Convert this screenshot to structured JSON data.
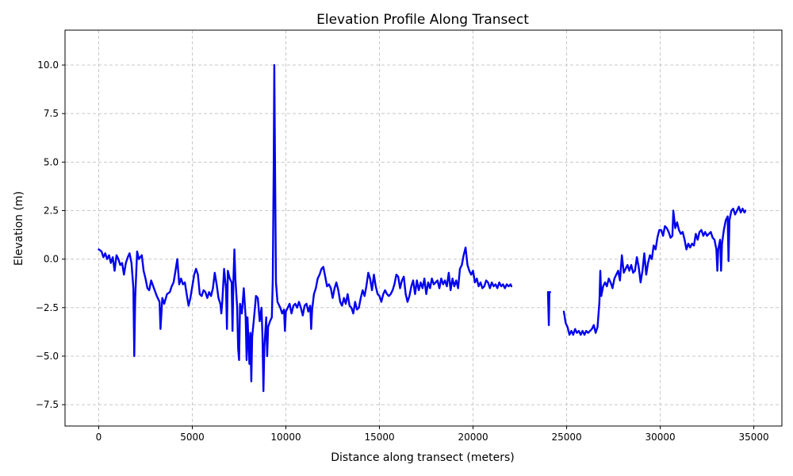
{
  "chart_data": {
    "type": "line",
    "title": "Elevation Profile Along Transect",
    "xlabel": "Distance along transect (meters)",
    "ylabel": "Elevation (m)",
    "xlim": [
      -1800,
      36500
    ],
    "ylim": [
      -8.6,
      11.8
    ],
    "x_ticks": [
      0,
      5000,
      10000,
      15000,
      20000,
      25000,
      30000,
      35000
    ],
    "y_ticks": [
      -7.5,
      -5.0,
      -2.5,
      0.0,
      2.5,
      5.0,
      7.5,
      10.0
    ],
    "grid": true,
    "line_color": "#0000ee",
    "segments": [
      [
        [
          0,
          0.5
        ],
        [
          150,
          0.4
        ],
        [
          250,
          0.1
        ],
        [
          350,
          0.3
        ],
        [
          450,
          0.0
        ],
        [
          550,
          0.2
        ],
        [
          650,
          -0.2
        ],
        [
          750,
          0.1
        ],
        [
          850,
          -0.6
        ],
        [
          950,
          0.2
        ],
        [
          1050,
          0.0
        ],
        [
          1150,
          -0.3
        ],
        [
          1250,
          -0.2
        ],
        [
          1350,
          -0.8
        ],
        [
          1450,
          -0.2
        ],
        [
          1550,
          0.1
        ],
        [
          1650,
          0.3
        ],
        [
          1750,
          -0.2
        ],
        [
          1850,
          -1.5
        ],
        [
          1900,
          -5.0
        ],
        [
          1950,
          -2.0
        ],
        [
          2050,
          0.4
        ],
        [
          2150,
          0.0
        ],
        [
          2300,
          0.2
        ],
        [
          2400,
          -0.6
        ],
        [
          2500,
          -1.0
        ],
        [
          2600,
          -1.5
        ],
        [
          2700,
          -1.6
        ],
        [
          2800,
          -1.1
        ],
        [
          2950,
          -1.5
        ],
        [
          3100,
          -1.9
        ],
        [
          3250,
          -2.2
        ],
        [
          3300,
          -3.6
        ],
        [
          3400,
          -2.0
        ],
        [
          3500,
          -2.3
        ],
        [
          3650,
          -1.8
        ],
        [
          3800,
          -1.7
        ],
        [
          3900,
          -1.4
        ],
        [
          4000,
          -1.2
        ],
        [
          4100,
          -0.6
        ],
        [
          4200,
          0.0
        ],
        [
          4300,
          -1.3
        ],
        [
          4400,
          -1.0
        ],
        [
          4500,
          -1.3
        ],
        [
          4600,
          -1.2
        ],
        [
          4700,
          -1.8
        ],
        [
          4800,
          -2.4
        ],
        [
          4900,
          -2.0
        ],
        [
          5000,
          -1.4
        ],
        [
          5100,
          -0.8
        ],
        [
          5200,
          -0.5
        ],
        [
          5300,
          -0.8
        ],
        [
          5400,
          -1.8
        ],
        [
          5500,
          -1.9
        ],
        [
          5600,
          -1.6
        ],
        [
          5700,
          -1.7
        ],
        [
          5800,
          -2.0
        ],
        [
          5900,
          -1.7
        ],
        [
          6000,
          -1.9
        ],
        [
          6100,
          -1.5
        ],
        [
          6200,
          -0.7
        ],
        [
          6300,
          -1.3
        ],
        [
          6400,
          -2.0
        ],
        [
          6500,
          -2.3
        ],
        [
          6550,
          -2.8
        ],
        [
          6600,
          -2.2
        ],
        [
          6700,
          -0.5
        ],
        [
          6800,
          -1.5
        ],
        [
          6850,
          -3.6
        ],
        [
          6900,
          -0.6
        ],
        [
          7000,
          -1.0
        ],
        [
          7100,
          -1.2
        ],
        [
          7150,
          -3.7
        ],
        [
          7200,
          -1.0
        ],
        [
          7250,
          0.5
        ],
        [
          7300,
          -1.0
        ],
        [
          7400,
          -2.5
        ],
        [
          7450,
          -4.6
        ],
        [
          7500,
          -5.2
        ],
        [
          7550,
          -2.3
        ],
        [
          7650,
          -2.8
        ],
        [
          7750,
          -1.5
        ],
        [
          7850,
          -3.0
        ],
        [
          7900,
          -5.2
        ],
        [
          7950,
          -3.0
        ],
        [
          8050,
          -5.4
        ],
        [
          8100,
          -3.8
        ],
        [
          8150,
          -6.3
        ],
        [
          8200,
          -4.0
        ],
        [
          8300,
          -3.0
        ],
        [
          8400,
          -1.9
        ],
        [
          8500,
          -2.0
        ],
        [
          8600,
          -3.2
        ],
        [
          8700,
          -2.5
        ],
        [
          8750,
          -4.0
        ],
        [
          8800,
          -6.8
        ],
        [
          8850,
          -4.5
        ],
        [
          8950,
          -3.0
        ],
        [
          9000,
          -5.0
        ],
        [
          9050,
          -3.5
        ],
        [
          9150,
          -3.2
        ],
        [
          9250,
          -3.0
        ],
        [
          9300,
          -1.0
        ],
        [
          9350,
          5.0
        ],
        [
          9380,
          10.0
        ],
        [
          9420,
          5.0
        ],
        [
          9470,
          -1.2
        ],
        [
          9550,
          -2.2
        ],
        [
          9700,
          -2.5
        ],
        [
          9800,
          -2.8
        ],
        [
          9900,
          -2.6
        ],
        [
          9950,
          -3.7
        ],
        [
          10000,
          -2.7
        ],
        [
          10100,
          -2.5
        ],
        [
          10200,
          -2.3
        ],
        [
          10300,
          -2.8
        ],
        [
          10400,
          -2.4
        ],
        [
          10500,
          -2.3
        ],
        [
          10600,
          -2.5
        ],
        [
          10700,
          -2.2
        ],
        [
          10800,
          -2.5
        ],
        [
          10900,
          -2.9
        ],
        [
          11000,
          -2.4
        ],
        [
          11100,
          -2.3
        ],
        [
          11200,
          -2.7
        ],
        [
          11300,
          -2.4
        ],
        [
          11350,
          -3.6
        ],
        [
          11400,
          -2.6
        ],
        [
          11500,
          -1.8
        ],
        [
          11600,
          -1.5
        ],
        [
          11700,
          -1.0
        ],
        [
          11800,
          -0.8
        ],
        [
          11900,
          -0.5
        ],
        [
          12000,
          -0.4
        ],
        [
          12100,
          -0.9
        ],
        [
          12200,
          -1.4
        ],
        [
          12300,
          -1.3
        ],
        [
          12400,
          -1.5
        ],
        [
          12500,
          -2.0
        ],
        [
          12600,
          -1.5
        ],
        [
          12700,
          -1.2
        ],
        [
          12800,
          -1.6
        ],
        [
          12900,
          -2.2
        ],
        [
          13000,
          -2.4
        ],
        [
          13100,
          -2.0
        ],
        [
          13200,
          -2.3
        ],
        [
          13300,
          -1.8
        ],
        [
          13400,
          -2.4
        ],
        [
          13500,
          -2.5
        ],
        [
          13600,
          -2.8
        ],
        [
          13700,
          -2.2
        ],
        [
          13800,
          -2.6
        ],
        [
          13900,
          -2.5
        ],
        [
          14000,
          -2.0
        ],
        [
          14100,
          -1.6
        ],
        [
          14200,
          -1.9
        ],
        [
          14300,
          -1.4
        ],
        [
          14400,
          -0.7
        ],
        [
          14500,
          -1.0
        ],
        [
          14600,
          -1.6
        ],
        [
          14700,
          -0.8
        ],
        [
          14800,
          -1.4
        ],
        [
          14900,
          -1.8
        ],
        [
          15000,
          -1.9
        ],
        [
          15100,
          -2.2
        ],
        [
          15200,
          -1.8
        ],
        [
          15300,
          -1.6
        ],
        [
          15400,
          -1.8
        ],
        [
          15500,
          -1.9
        ],
        [
          15600,
          -1.8
        ],
        [
          15700,
          -1.6
        ],
        [
          15800,
          -1.3
        ],
        [
          15900,
          -0.8
        ],
        [
          16000,
          -0.9
        ],
        [
          16100,
          -1.5
        ],
        [
          16200,
          -1.1
        ],
        [
          16300,
          -0.9
        ],
        [
          16400,
          -1.8
        ],
        [
          16500,
          -2.2
        ],
        [
          16600,
          -1.9
        ],
        [
          16700,
          -1.4
        ],
        [
          16800,
          -1.1
        ],
        [
          16900,
          -1.8
        ],
        [
          17000,
          -1.1
        ],
        [
          17100,
          -1.6
        ],
        [
          17200,
          -1.2
        ],
        [
          17300,
          -1.5
        ],
        [
          17400,
          -1.0
        ],
        [
          17500,
          -1.8
        ],
        [
          17600,
          -1.2
        ],
        [
          17700,
          -1.5
        ],
        [
          17800,
          -1.0
        ],
        [
          17900,
          -1.3
        ],
        [
          18000,
          -1.2
        ],
        [
          18100,
          -1.1
        ],
        [
          18200,
          -1.5
        ],
        [
          18300,
          -1.0
        ],
        [
          18400,
          -1.3
        ],
        [
          18500,
          -1.1
        ],
        [
          18600,
          -1.4
        ],
        [
          18700,
          -0.7
        ],
        [
          18800,
          -1.6
        ],
        [
          18900,
          -1.0
        ],
        [
          19000,
          -1.4
        ],
        [
          19100,
          -1.1
        ],
        [
          19200,
          -1.5
        ],
        [
          19300,
          -0.5
        ],
        [
          19400,
          -0.3
        ],
        [
          19500,
          0.2
        ],
        [
          19600,
          0.6
        ],
        [
          19700,
          -0.3
        ],
        [
          19800,
          -0.6
        ],
        [
          19900,
          -0.8
        ],
        [
          20000,
          -0.6
        ],
        [
          20100,
          -1.2
        ],
        [
          20200,
          -1.0
        ],
        [
          20300,
          -1.4
        ],
        [
          20400,
          -1.2
        ],
        [
          20500,
          -1.5
        ],
        [
          20600,
          -1.4
        ],
        [
          20700,
          -1.1
        ],
        [
          20800,
          -1.2
        ],
        [
          20900,
          -1.5
        ],
        [
          21000,
          -1.2
        ],
        [
          21100,
          -1.4
        ],
        [
          21200,
          -1.3
        ],
        [
          21300,
          -1.5
        ],
        [
          21400,
          -1.2
        ],
        [
          21500,
          -1.4
        ],
        [
          21600,
          -1.3
        ],
        [
          21700,
          -1.5
        ],
        [
          21800,
          -1.3
        ],
        [
          21900,
          -1.4
        ],
        [
          22000,
          -1.3
        ],
        [
          22050,
          -1.4
        ]
      ],
      [
        [
          24000,
          -1.7
        ],
        [
          24050,
          -3.4
        ],
        [
          24080,
          -1.7
        ],
        [
          24120,
          -1.7
        ]
      ],
      [
        [
          24850,
          -2.7
        ],
        [
          24950,
          -3.3
        ],
        [
          25050,
          -3.5
        ],
        [
          25150,
          -3.9
        ],
        [
          25250,
          -3.7
        ],
        [
          25350,
          -3.9
        ],
        [
          25450,
          -3.6
        ],
        [
          25550,
          -3.8
        ],
        [
          25650,
          -3.7
        ],
        [
          25750,
          -3.9
        ],
        [
          25850,
          -3.7
        ],
        [
          25950,
          -3.9
        ],
        [
          26050,
          -3.7
        ],
        [
          26150,
          -3.8
        ],
        [
          26250,
          -3.7
        ],
        [
          26350,
          -3.6
        ],
        [
          26450,
          -3.4
        ],
        [
          26550,
          -3.8
        ],
        [
          26650,
          -3.5
        ],
        [
          26750,
          -2.2
        ],
        [
          26800,
          -0.6
        ],
        [
          26850,
          -1.9
        ],
        [
          26950,
          -1.4
        ],
        [
          27050,
          -1.2
        ],
        [
          27150,
          -1.4
        ],
        [
          27250,
          -1.0
        ],
        [
          27350,
          -1.2
        ],
        [
          27450,
          -1.5
        ],
        [
          27550,
          -1.0
        ],
        [
          27650,
          -0.8
        ],
        [
          27750,
          -0.6
        ],
        [
          27850,
          -1.1
        ],
        [
          27950,
          0.2
        ],
        [
          28050,
          -0.7
        ],
        [
          28150,
          -0.5
        ],
        [
          28250,
          -0.3
        ],
        [
          28350,
          -0.6
        ],
        [
          28450,
          -0.3
        ],
        [
          28550,
          -0.7
        ],
        [
          28650,
          -0.6
        ],
        [
          28750,
          0.1
        ],
        [
          28850,
          -0.4
        ],
        [
          28950,
          -1.2
        ],
        [
          29050,
          -0.6
        ],
        [
          29150,
          0.3
        ],
        [
          29250,
          -0.8
        ],
        [
          29350,
          -0.2
        ],
        [
          29450,
          0.2
        ],
        [
          29550,
          0.0
        ],
        [
          29650,
          0.7
        ],
        [
          29750,
          0.5
        ],
        [
          29850,
          1.1
        ],
        [
          29950,
          1.5
        ],
        [
          30050,
          1.5
        ],
        [
          30150,
          1.2
        ],
        [
          30250,
          1.7
        ],
        [
          30350,
          1.6
        ],
        [
          30450,
          1.4
        ],
        [
          30550,
          1.1
        ],
        [
          30650,
          1.2
        ],
        [
          30700,
          2.5
        ],
        [
          30800,
          1.6
        ],
        [
          30900,
          1.9
        ],
        [
          31000,
          1.5
        ],
        [
          31100,
          1.3
        ],
        [
          31200,
          1.4
        ],
        [
          31300,
          1.0
        ],
        [
          31400,
          0.5
        ],
        [
          31500,
          0.8
        ],
        [
          31600,
          0.6
        ],
        [
          31700,
          0.8
        ],
        [
          31800,
          0.7
        ],
        [
          31900,
          1.3
        ],
        [
          32000,
          1.0
        ],
        [
          32100,
          1.4
        ],
        [
          32200,
          1.5
        ],
        [
          32300,
          1.2
        ],
        [
          32400,
          1.4
        ],
        [
          32500,
          1.2
        ],
        [
          32600,
          1.3
        ],
        [
          32700,
          1.4
        ],
        [
          32800,
          1.1
        ],
        [
          32900,
          1.0
        ],
        [
          33000,
          0.5
        ],
        [
          33050,
          -0.6
        ],
        [
          33100,
          0.5
        ],
        [
          33200,
          1.0
        ],
        [
          33250,
          -0.6
        ],
        [
          33300,
          0.8
        ],
        [
          33400,
          1.5
        ],
        [
          33500,
          2.0
        ],
        [
          33600,
          2.2
        ],
        [
          33650,
          -0.1
        ],
        [
          33700,
          2.0
        ],
        [
          33800,
          2.5
        ],
        [
          33900,
          2.6
        ],
        [
          34000,
          2.3
        ],
        [
          34100,
          2.5
        ],
        [
          34200,
          2.7
        ],
        [
          34300,
          2.4
        ],
        [
          34400,
          2.6
        ],
        [
          34500,
          2.4
        ],
        [
          34550,
          2.5
        ]
      ]
    ]
  }
}
